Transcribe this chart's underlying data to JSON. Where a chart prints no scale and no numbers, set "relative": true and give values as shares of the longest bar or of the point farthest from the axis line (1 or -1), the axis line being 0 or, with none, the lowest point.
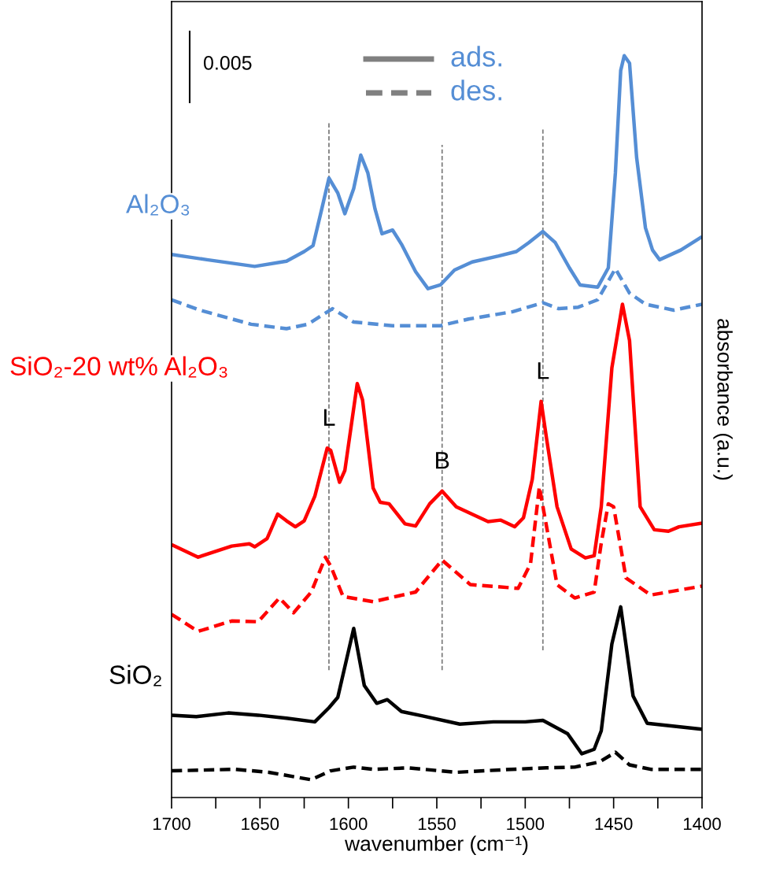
{
  "chart_data": {
    "type": "line",
    "relative": true,
    "xlabel": "wavenumber (cm⁻¹)",
    "ylabel": "absorbance (a.u.)",
    "xlim": [
      1700,
      1400
    ],
    "xticks": [
      1700,
      {
        "value": 1675,
        "label": null
      },
      1650,
      {
        "value": 1625,
        "label": null
      },
      1600,
      {
        "value": 1575,
        "label": null
      },
      1550,
      {
        "value": 1525,
        "label": null
      },
      1500,
      {
        "value": 1475,
        "label": null
      },
      1450,
      {
        "value": 1425,
        "label": null
      },
      1400
    ],
    "grid": false,
    "tick_labels": "x",
    "series": [
      {
        "name": "Al₂O₃",
        "color": "#558ed5",
        "line_style": "solid",
        "x": [
          1700,
          1680,
          1653,
          1635,
          1625,
          1620,
          1615,
          1611,
          1606,
          1602,
          1597,
          1593,
          1589,
          1585,
          1581,
          1575,
          1570,
          1562,
          1555,
          1548,
          1540,
          1530,
          1515,
          1505,
          1498,
          1490,
          1483,
          1475,
          1469,
          1459,
          1453,
          1449,
          1446,
          1444,
          1441,
          1437,
          1432,
          1428,
          1424,
          1412,
          1400
        ],
        "values": [
          0.732,
          0.725,
          0.716,
          0.723,
          0.736,
          0.744,
          0.794,
          0.835,
          0.815,
          0.787,
          0.821,
          0.866,
          0.842,
          0.794,
          0.76,
          0.765,
          0.746,
          0.709,
          0.686,
          0.691,
          0.711,
          0.722,
          0.73,
          0.736,
          0.748,
          0.763,
          0.748,
          0.714,
          0.691,
          0.688,
          0.714,
          0.842,
          0.98,
          1.0,
          0.99,
          0.863,
          0.768,
          0.738,
          0.725,
          0.738,
          0.756
        ]
      },
      {
        "color": "#558ed5",
        "line_style": "dashed",
        "x": [
          1700,
          1684,
          1655,
          1635,
          1623,
          1609,
          1597,
          1575,
          1548,
          1532,
          1507,
          1490,
          1481,
          1470,
          1459,
          1449,
          1441,
          1432,
          1416,
          1400
        ],
        "values": [
          0.671,
          0.657,
          0.638,
          0.632,
          0.638,
          0.659,
          0.641,
          0.636,
          0.636,
          0.645,
          0.655,
          0.667,
          0.659,
          0.661,
          0.671,
          0.713,
          0.68,
          0.665,
          0.657,
          0.665
        ]
      },
      {
        "name": "SiO₂-20 wt% Al₂O₃",
        "color": "#ff0000",
        "line_style": "solid",
        "x": [
          1700,
          1685,
          1666,
          1656,
          1653,
          1646,
          1640,
          1635,
          1630,
          1625,
          1619,
          1612,
          1610,
          1605,
          1602,
          1595,
          1592,
          1586,
          1582,
          1577,
          1568,
          1562,
          1554,
          1547,
          1539,
          1521,
          1514,
          1506,
          1501,
          1496,
          1491,
          1488,
          1482,
          1474,
          1466,
          1461,
          1457,
          1451,
          1445,
          1441,
          1435,
          1427,
          1419,
          1413,
          1400
        ],
        "values": [
          0.341,
          0.324,
          0.339,
          0.342,
          0.338,
          0.349,
          0.382,
          0.373,
          0.365,
          0.373,
          0.406,
          0.471,
          0.468,
          0.425,
          0.441,
          0.558,
          0.536,
          0.417,
          0.398,
          0.396,
          0.369,
          0.366,
          0.396,
          0.413,
          0.392,
          0.372,
          0.374,
          0.365,
          0.377,
          0.429,
          0.534,
          0.485,
          0.392,
          0.335,
          0.323,
          0.326,
          0.392,
          0.579,
          0.665,
          0.616,
          0.392,
          0.361,
          0.359,
          0.365,
          0.37
        ]
      },
      {
        "color": "#ff0000",
        "line_style": "dashed",
        "x": [
          1700,
          1685,
          1666,
          1651,
          1639,
          1631,
          1621,
          1613,
          1610,
          1603,
          1586,
          1562,
          1547,
          1531,
          1504,
          1497,
          1492,
          1482,
          1472,
          1461,
          1457,
          1453,
          1450,
          1443,
          1429,
          1400
        ],
        "values": [
          0.247,
          0.224,
          0.238,
          0.237,
          0.269,
          0.249,
          0.277,
          0.324,
          0.312,
          0.271,
          0.264,
          0.277,
          0.32,
          0.287,
          0.282,
          0.315,
          0.419,
          0.287,
          0.269,
          0.277,
          0.343,
          0.396,
          0.392,
          0.296,
          0.273,
          0.285
        ]
      },
      {
        "name": "SiO₂",
        "color": "#000000",
        "line_style": "solid",
        "x": [
          1700,
          1686,
          1668,
          1651,
          1635,
          1619,
          1611,
          1606,
          1597,
          1591,
          1584,
          1578,
          1570,
          1558,
          1537,
          1518,
          1500,
          1490,
          1476,
          1468,
          1461,
          1457,
          1451,
          1446,
          1439,
          1431,
          1400
        ],
        "values": [
          0.111,
          0.109,
          0.114,
          0.111,
          0.107,
          0.102,
          0.121,
          0.135,
          0.228,
          0.151,
          0.127,
          0.132,
          0.116,
          0.11,
          0.099,
          0.102,
          0.102,
          0.104,
          0.086,
          0.059,
          0.065,
          0.09,
          0.207,
          0.257,
          0.137,
          0.1,
          0.092
        ]
      },
      {
        "color": "#000000",
        "line_style": "dashed",
        "x": [
          1700,
          1664,
          1645,
          1621,
          1610,
          1597,
          1586,
          1566,
          1539,
          1508,
          1488,
          1472,
          1458,
          1449,
          1441,
          1429,
          1400
        ],
        "values": [
          0.036,
          0.038,
          0.034,
          0.024,
          0.036,
          0.041,
          0.038,
          0.04,
          0.034,
          0.038,
          0.04,
          0.041,
          0.048,
          0.061,
          0.044,
          0.038,
          0.038
        ]
      }
    ],
    "ref_lines": [
      {
        "axis": "x",
        "value": 1611,
        "color": "#808080",
        "line_style": "dashed"
      },
      {
        "axis": "x",
        "value": 1547,
        "color": "#808080",
        "line_style": "dashed"
      },
      {
        "axis": "x",
        "value": 1490,
        "color": "#808080",
        "line_style": "dashed"
      }
    ],
    "annotations": [
      "0.005",
      "ads.",
      "des.",
      {
        "text": "L",
        "x": 1611,
        "y": 0.471
      },
      {
        "text": "B",
        "x": 1547,
        "y": 0.413
      },
      {
        "text": "L",
        "x": 1490,
        "y": 0.534
      }
    ]
  }
}
